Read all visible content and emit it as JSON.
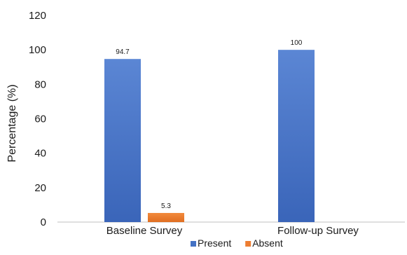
{
  "chart_data": {
    "type": "bar",
    "categories": [
      "Baseline Survey",
      "Follow-up Survey"
    ],
    "series": [
      {
        "name": "Present",
        "values": [
          94.7,
          100
        ],
        "color": "#4472c4"
      },
      {
        "name": "Absent",
        "values": [
          5.3,
          null
        ],
        "color": "#ed7d31"
      }
    ],
    "data_labels": [
      [
        "94.7",
        "100"
      ],
      [
        "5.3",
        ""
      ]
    ],
    "ylabel": "Percentage (%)",
    "xlabel": "",
    "ylim": [
      0,
      120
    ],
    "yticks": [
      "0",
      "20",
      "40",
      "60",
      "80",
      "100",
      "120"
    ],
    "grid": false,
    "legend_position": "bottom"
  }
}
